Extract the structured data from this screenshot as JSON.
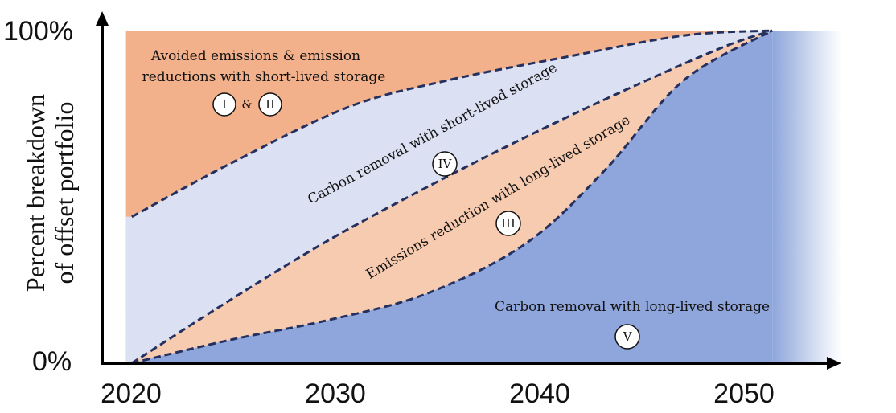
{
  "chart_data": {
    "type": "area",
    "title": "",
    "xlabel": "",
    "ylabel": "Percent breakdown of offset portfolio",
    "ylabel_lines": [
      "Percent breakdown",
      "of offset portfolio"
    ],
    "xlim": [
      2018.5,
      2056
    ],
    "ylim": [
      0,
      100
    ],
    "x_ticks": [
      "2020",
      "2030",
      "2040",
      "2050"
    ],
    "x_tick_values": [
      2020,
      2030,
      2040,
      2050
    ],
    "y_ticks": [
      "0%",
      "100%"
    ],
    "y_tick_values": [
      0,
      100
    ],
    "boundaries": [
      {
        "name": "short-lived avoided/reduction upper limit",
        "x": [
          2020,
          2025,
          2031,
          2036,
          2042,
          2048,
          2052.5
        ],
        "y": [
          44,
          60,
          77,
          85,
          92,
          98.5,
          100
        ]
      },
      {
        "name": "carbon removal short-lived upper limit",
        "x": [
          2020,
          2025,
          2030,
          2035,
          2040,
          2045,
          2050,
          2052.5
        ],
        "y": [
          0,
          19,
          37,
          53,
          68,
          82,
          95,
          100
        ]
      },
      {
        "name": "emissions reduction long-lived upper limit",
        "x": [
          2020,
          2025,
          2030,
          2035,
          2040,
          2044,
          2048,
          2052.5
        ],
        "y": [
          0,
          7,
          13,
          21,
          36,
          58,
          85,
          100
        ]
      }
    ],
    "series": [
      {
        "name": "Avoided emissions & emission reductions with short-lived storage",
        "badge": [
          "I",
          "II"
        ],
        "color": "#f2b08b"
      },
      {
        "name": "Carbon removal with short-lived storage",
        "badge": [
          "IV"
        ],
        "color": "#dbe0f2"
      },
      {
        "name": "Emissions reduction with long-lived storage",
        "badge": [
          "III"
        ],
        "color": "#f7cbb0"
      },
      {
        "name": "Carbon removal with long-lived storage",
        "badge": [
          "V"
        ],
        "color": "#8ea6dc"
      }
    ],
    "labels": {
      "avoided_line1": "Avoided emissions & emission",
      "avoided_line2": "reductions with short-lived storage",
      "badge_1": "I",
      "badge_amp": "&",
      "badge_2": "II",
      "carbon_short": "Carbon removal with short-lived storage",
      "badge_4": "IV",
      "emissions_long": "Emissions reduction with long-lived storage",
      "badge_3": "III",
      "carbon_long": "Carbon removal with long-lived storage",
      "badge_5": "V"
    },
    "boundary_color": "#24305e",
    "axis_color": "#000000"
  }
}
